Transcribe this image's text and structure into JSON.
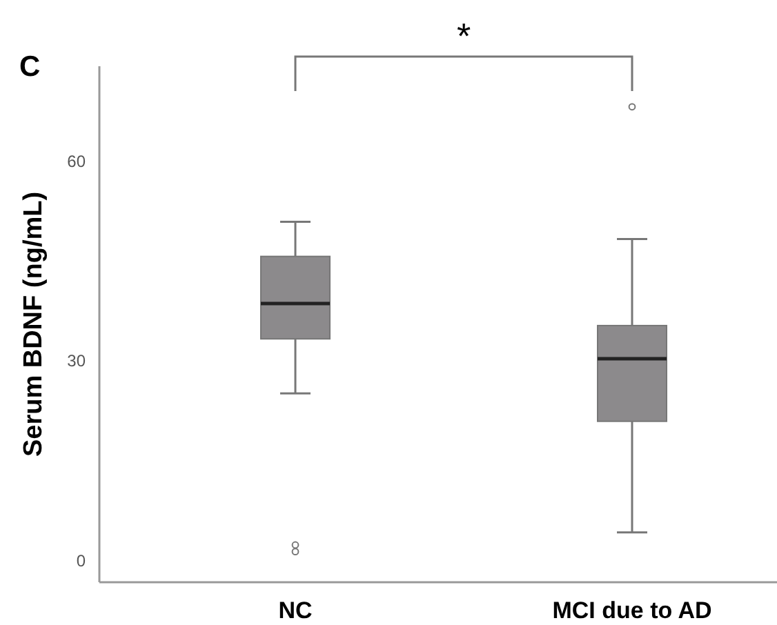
{
  "chart_data": {
    "type": "box",
    "title": "C",
    "ylabel": "Serum BDNF (ng/mL)",
    "categories": [
      "NC",
      "MCI due to AD"
    ],
    "boxes": [
      {
        "low": 25.1,
        "q1": 33.3,
        "median": 38.6,
        "q3": 45.7,
        "high": 50.9,
        "outliers": [
          1.3,
          2.3
        ]
      },
      {
        "low": 4.2,
        "q1": 20.9,
        "median": 30.3,
        "q3": 35.3,
        "high": 48.3,
        "outliers": [
          68.2
        ]
      }
    ],
    "color": "#8c8a8c",
    "ylim": [
      -3.3,
      74.3
    ],
    "yticks": [
      0,
      30,
      60
    ],
    "annotations": [
      "*"
    ]
  }
}
